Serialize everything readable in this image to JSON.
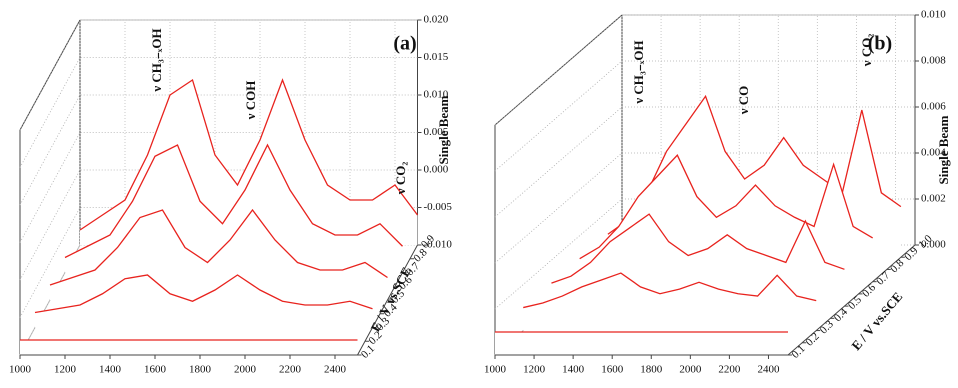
{
  "chart_data": [
    {
      "type": "waterfall",
      "label": "(a)",
      "color": "#e8231e",
      "ylabel": "Single Beam",
      "zlabel": "E / V vs.SCE",
      "annotations": [
        "ν CH₃₋ₓOH",
        "ν COH",
        "ν CO₂"
      ],
      "x": [
        1000,
        1100,
        1200,
        1300,
        1400,
        1500,
        1600,
        1700,
        1800,
        1900,
        2000,
        2100,
        2200,
        2300,
        2400,
        2500
      ],
      "z": [
        0.1,
        0.3,
        0.5,
        0.7,
        0.9
      ],
      "series": [
        {
          "values": [
            -0.008,
            -0.008,
            -0.008,
            -0.008,
            -0.008,
            -0.008,
            -0.008,
            -0.008,
            -0.008,
            -0.008,
            -0.008,
            -0.008,
            -0.008,
            -0.008,
            -0.008,
            -0.008
          ]
        },
        {
          "values": [
            -0.008,
            -0.0075,
            -0.007,
            -0.0055,
            -0.0035,
            -0.003,
            -0.0055,
            -0.0065,
            -0.005,
            -0.003,
            -0.005,
            -0.0065,
            -0.007,
            -0.007,
            -0.0065,
            -0.0075
          ]
        },
        {
          "values": [
            -0.008,
            -0.007,
            -0.006,
            -0.003,
            0.001,
            0.002,
            -0.003,
            -0.005,
            -0.002,
            0.002,
            -0.002,
            -0.005,
            -0.006,
            -0.006,
            -0.005,
            -0.007
          ]
        },
        {
          "values": [
            -0.008,
            -0.0065,
            -0.005,
            -0.0005,
            0.0055,
            0.007,
            -0.0005,
            -0.0035,
            0.001,
            0.007,
            0.001,
            -0.0035,
            -0.005,
            -0.005,
            -0.0035,
            -0.0065
          ]
        },
        {
          "values": [
            -0.008,
            -0.006,
            -0.004,
            0.002,
            0.01,
            0.012,
            0.002,
            -0.002,
            0.004,
            0.012,
            0.004,
            -0.002,
            -0.004,
            -0.004,
            -0.002,
            -0.006
          ]
        }
      ],
      "xlim": [
        1000,
        2500
      ],
      "xticks": [
        1000,
        1200,
        1400,
        1600,
        1800,
        2000,
        2200,
        2400
      ],
      "ylim": [
        -0.01,
        0.02
      ],
      "yticks": [
        {
          "value": 0.02,
          "label": "0.020"
        },
        {
          "value": 0.015,
          "label": "0.015"
        },
        {
          "value": 0.01,
          "label": "0.010"
        },
        {
          "value": 0.005,
          "label": "0.005"
        },
        {
          "value": 0,
          "label": "0.000"
        },
        {
          "value": -0.005,
          "label": "-0.005"
        },
        {
          "value": -0.01,
          "label": "-0.010"
        }
      ],
      "zlim": [
        0.1,
        0.9
      ],
      "zticks": [
        0.1,
        0.2,
        0.3,
        0.4,
        0.5,
        0.6,
        0.7,
        0.8,
        0.9
      ],
      "grid": true
    },
    {
      "type": "waterfall",
      "label": "(b)",
      "color": "#e8231e",
      "ylabel": "Single Beam",
      "zlabel": "E / V vs.SCE",
      "annotations": [
        "ν CH₃₋ₓOH",
        "ν CO",
        "ν CO₂"
      ],
      "x": [
        1000,
        1100,
        1200,
        1300,
        1400,
        1500,
        1600,
        1700,
        1800,
        1900,
        2000,
        2100,
        2200,
        2300,
        2400,
        2500
      ],
      "z": [
        0.1,
        0.3,
        0.5,
        0.7,
        0.9
      ],
      "series": [
        {
          "values": [
            0.001,
            0.001,
            0.001,
            0.001,
            0.001,
            0.001,
            0.001,
            0.001,
            0.001,
            0.001,
            0.001,
            0.001,
            0.001,
            0.001,
            0.001,
            0.001
          ]
        },
        {
          "values": [
            0.001,
            0.0012,
            0.0015,
            0.0019,
            0.0022,
            0.0025,
            0.0019,
            0.0016,
            0.0018,
            0.0021,
            0.0018,
            0.0016,
            0.0015,
            0.0024,
            0.0015,
            0.0013
          ]
        },
        {
          "values": [
            0.001,
            0.0013,
            0.0019,
            0.0028,
            0.0034,
            0.004,
            0.0028,
            0.0022,
            0.0025,
            0.0031,
            0.0025,
            0.0022,
            0.0019,
            0.0037,
            0.0019,
            0.0016
          ]
        },
        {
          "values": [
            0.001,
            0.0015,
            0.0024,
            0.0037,
            0.0046,
            0.0055,
            0.0037,
            0.0028,
            0.0033,
            0.0042,
            0.0033,
            0.0028,
            0.0024,
            0.0051,
            0.0024,
            0.0019
          ]
        },
        {
          "values": [
            0.001,
            0.0016,
            0.0028,
            0.0046,
            0.0058,
            0.007,
            0.0046,
            0.0034,
            0.004,
            0.0052,
            0.004,
            0.0034,
            0.0028,
            0.0064,
            0.0028,
            0.0022
          ]
        }
      ],
      "xlim": [
        1000,
        2500
      ],
      "xticks": [
        1000,
        1200,
        1400,
        1600,
        1800,
        2000,
        2200,
        2400
      ],
      "ylim": [
        0,
        0.01
      ],
      "yticks": [
        {
          "value": 0.01,
          "label": "0.010"
        },
        {
          "value": 0.008,
          "label": "0.008"
        },
        {
          "value": 0.006,
          "label": "0.006"
        },
        {
          "value": 0.004,
          "label": "0.004"
        },
        {
          "value": 0.002,
          "label": "0.002"
        },
        {
          "value": 0,
          "label": "0.000"
        }
      ],
      "zlim": [
        0.1,
        1.0
      ],
      "zticks": [
        0.1,
        0.2,
        0.3,
        0.4,
        0.5,
        0.6,
        0.7,
        0.8,
        0.9,
        {
          "value": 1.0,
          "label": "1.0"
        }
      ],
      "grid": true
    }
  ]
}
